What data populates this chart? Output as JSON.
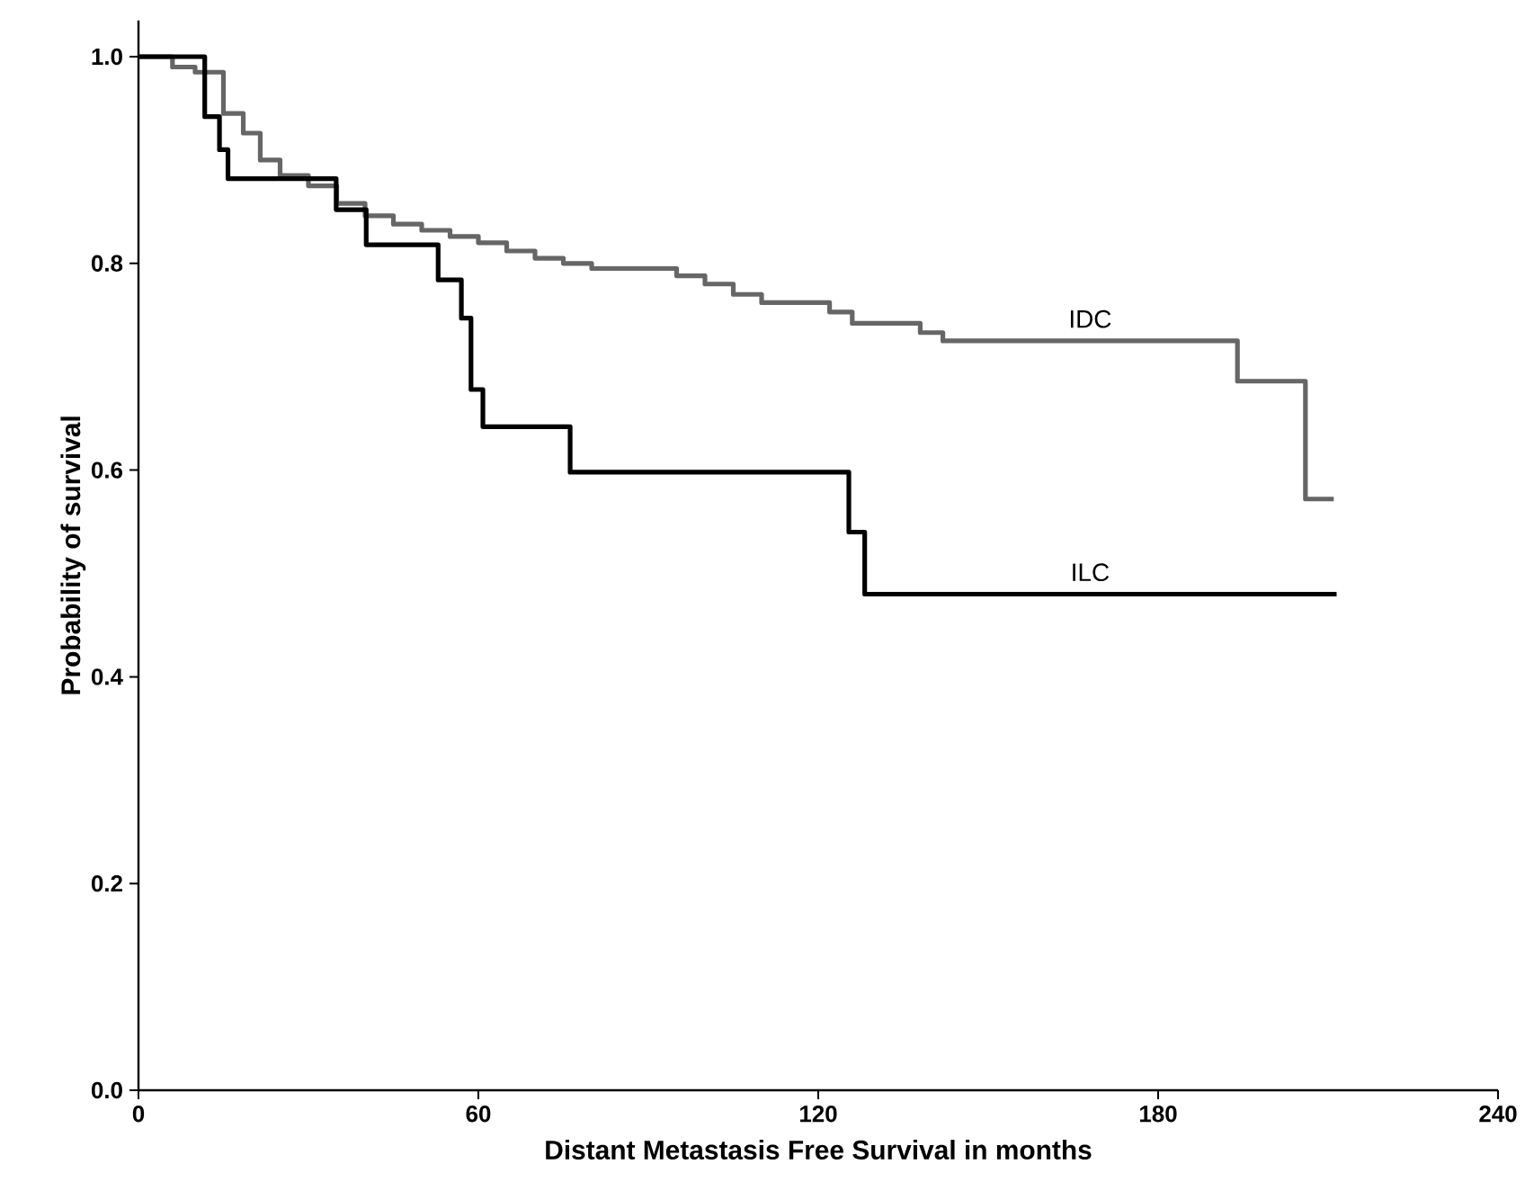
{
  "chart_data": {
    "type": "step",
    "xlabel": "Distant Metastasis Free Survival in months",
    "ylabel": "Probability of survival",
    "xlim": [
      0,
      240
    ],
    "ylim": [
      0,
      1.035
    ],
    "xticks": [
      0,
      60,
      120,
      180,
      240
    ],
    "yticks": [
      {
        "value": 0,
        "label": "0.0"
      },
      {
        "value": 0.2,
        "label": "0.2"
      },
      {
        "value": 0.4,
        "label": "0.4"
      },
      {
        "value": 0.6,
        "label": "0.6"
      },
      {
        "value": 0.8,
        "label": "0.8"
      },
      {
        "value": 1,
        "label": "1.0"
      }
    ],
    "grid": false,
    "series": [
      {
        "name": "IDC",
        "color": "#666666",
        "x": [
          0,
          6,
          10,
          15,
          18.5,
          21.5,
          25,
          30,
          35,
          40,
          45,
          50,
          55,
          60,
          65,
          70,
          75,
          80,
          90,
          95,
          100,
          105,
          110,
          122,
          126,
          138,
          142,
          194,
          206,
          211
        ],
        "values": [
          1.0,
          0.99,
          0.985,
          0.945,
          0.926,
          0.9,
          0.885,
          0.875,
          0.858,
          0.846,
          0.838,
          0.832,
          0.826,
          0.82,
          0.812,
          0.805,
          0.8,
          0.795,
          0.795,
          0.788,
          0.78,
          0.77,
          0.762,
          0.753,
          0.742,
          0.733,
          0.725,
          0.686,
          0.572,
          0.572
        ]
      },
      {
        "name": "ILC",
        "color": "#000000",
        "x": [
          0,
          11.7,
          14.3,
          15.8,
          34.9,
          40.2,
          52.9,
          57,
          58.7,
          60.8,
          76.2,
          125.4,
          128.2,
          211.5
        ],
        "values": [
          1.0,
          0.942,
          0.91,
          0.882,
          0.852,
          0.818,
          0.784,
          0.747,
          0.678,
          0.642,
          0.598,
          0.54,
          0.48,
          0.48
        ]
      }
    ]
  }
}
